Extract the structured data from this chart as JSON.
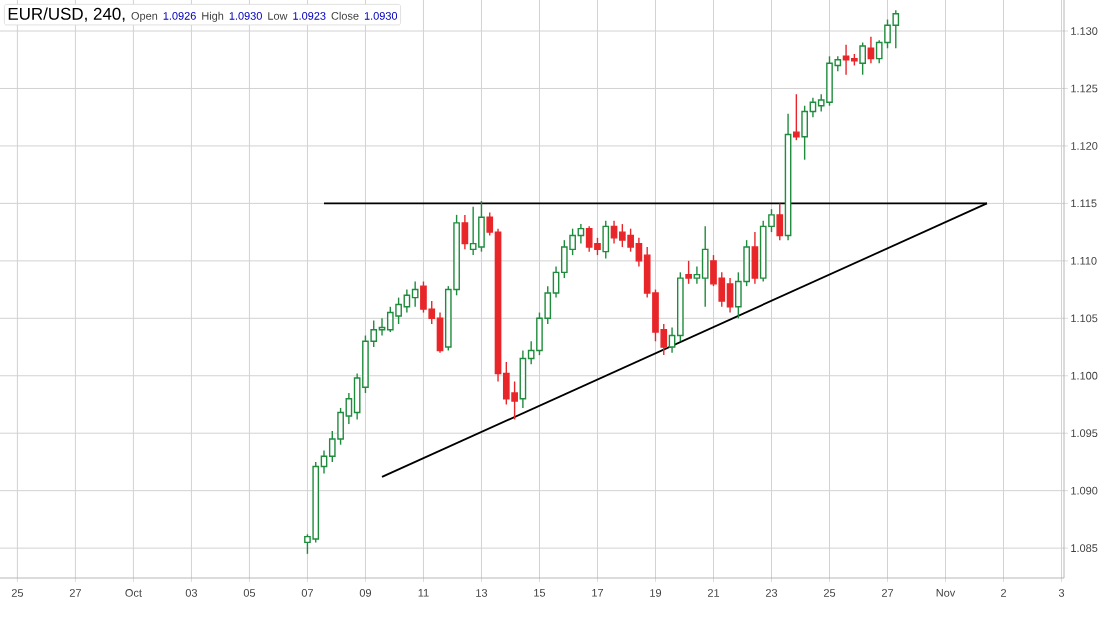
{
  "chart_data": {
    "type": "candlestick",
    "title": "EUR/USD, 240,",
    "annotations": [
      "Open",
      "1.0926",
      "High",
      "1.0930",
      "Low",
      "1.0923",
      "Close",
      "1.0930"
    ],
    "categories": [
      "25",
      null,
      null,
      null,
      null,
      null,
      null,
      "27",
      null,
      null,
      null,
      null,
      null,
      null,
      "Oct",
      null,
      null,
      null,
      null,
      null,
      null,
      "03",
      null,
      null,
      null,
      null,
      null,
      null,
      "05",
      null,
      null,
      null,
      null,
      null,
      null,
      "07",
      null,
      null,
      null,
      null,
      null,
      null,
      "09",
      null,
      null,
      null,
      null,
      null,
      null,
      "11",
      null,
      null,
      null,
      null,
      null,
      null,
      "13",
      null,
      null,
      null,
      null,
      null,
      null,
      "15",
      null,
      null,
      null,
      null,
      null,
      null,
      "17",
      null,
      null,
      null,
      null,
      null,
      null,
      "19",
      null,
      null,
      null,
      null,
      null,
      null,
      "21",
      null,
      null,
      null,
      null,
      null,
      null,
      "23",
      null,
      null,
      null,
      null,
      null,
      null,
      "25",
      null,
      null,
      null,
      null,
      null,
      null,
      "27",
      null,
      null,
      null,
      null,
      null,
      null,
      "Nov",
      null,
      null,
      null,
      null,
      null,
      null,
      "2",
      null,
      null,
      null,
      null,
      null,
      null,
      "3"
    ],
    "ohlc": [
      null,
      null,
      null,
      null,
      null,
      null,
      null,
      null,
      null,
      null,
      null,
      null,
      null,
      null,
      null,
      null,
      null,
      null,
      null,
      null,
      null,
      null,
      null,
      null,
      null,
      null,
      null,
      null,
      null,
      null,
      null,
      null,
      null,
      null,
      null,
      [
        1.0855,
        1.0862,
        1.0845,
        1.086
      ],
      [
        1.0858,
        1.0925,
        1.0855,
        1.0921
      ],
      [
        1.0921,
        1.0935,
        1.0915,
        1.093
      ],
      [
        1.093,
        1.0952,
        1.0925,
        1.0945
      ],
      [
        1.0945,
        1.0972,
        1.094,
        1.0968
      ],
      [
        1.0965,
        1.0985,
        1.0958,
        1.098
      ],
      [
        1.0968,
        1.1002,
        1.0962,
        1.0998
      ],
      [
        1.099,
        1.1035,
        1.0985,
        1.103
      ],
      [
        1.103,
        1.1048,
        1.1025,
        1.104
      ],
      [
        1.104,
        1.105,
        1.1035,
        1.1042
      ],
      [
        1.104,
        1.106,
        1.1038,
        1.1055
      ],
      [
        1.1052,
        1.1068,
        1.1045,
        1.1062
      ],
      [
        1.106,
        1.1075,
        1.1055,
        1.107
      ],
      [
        1.1068,
        1.1082,
        1.106,
        1.1075
      ],
      [
        1.1078,
        1.1082,
        1.1055,
        1.1058
      ],
      [
        1.1058,
        1.1065,
        1.1045,
        1.105
      ],
      [
        1.105,
        1.1055,
        1.102,
        1.1022
      ],
      [
        1.1025,
        1.1078,
        1.1022,
        1.1075
      ],
      [
        1.1075,
        1.114,
        1.107,
        1.1133
      ],
      [
        1.1133,
        1.114,
        1.111,
        1.1115
      ],
      [
        1.111,
        1.1147,
        1.1105,
        1.1115
      ],
      [
        1.1112,
        1.1152,
        1.1108,
        1.1138
      ],
      [
        1.1138,
        1.1142,
        1.1122,
        1.1125
      ],
      [
        1.1125,
        1.1128,
        1.0995,
        1.1002
      ],
      [
        1.1002,
        1.1012,
        1.0975,
        1.098
      ],
      [
        1.0985,
        1.0995,
        1.0962,
        1.0978
      ],
      [
        1.098,
        1.1022,
        1.0972,
        1.1015
      ],
      [
        1.1015,
        1.103,
        1.101,
        1.1022
      ],
      [
        1.1022,
        1.1055,
        1.1018,
        1.105
      ],
      [
        1.105,
        1.1078,
        1.1045,
        1.1072
      ],
      [
        1.1072,
        1.1095,
        1.1068,
        1.109
      ],
      [
        1.109,
        1.1118,
        1.1085,
        1.1112
      ],
      [
        1.111,
        1.1128,
        1.1105,
        1.1122
      ],
      [
        1.1122,
        1.1132,
        1.1115,
        1.1128
      ],
      [
        1.1128,
        1.113,
        1.1108,
        1.1112
      ],
      [
        1.1115,
        1.112,
        1.1105,
        1.111
      ],
      [
        1.1108,
        1.1135,
        1.1102,
        1.113
      ],
      [
        1.113,
        1.1135,
        1.1115,
        1.112
      ],
      [
        1.1125,
        1.1132,
        1.1112,
        1.1118
      ],
      [
        1.1122,
        1.1128,
        1.1108,
        1.1112
      ],
      [
        1.1115,
        1.112,
        1.1095,
        1.11
      ],
      [
        1.1105,
        1.1112,
        1.1068,
        1.1072
      ],
      [
        1.1072,
        1.1075,
        1.103,
        1.1038
      ],
      [
        1.104,
        1.1045,
        1.1018,
        1.1025
      ],
      [
        1.1025,
        1.1042,
        1.102,
        1.1035
      ],
      [
        1.1035,
        1.109,
        1.103,
        1.1085
      ],
      [
        1.1088,
        1.11,
        1.108,
        1.1085
      ],
      [
        1.1085,
        1.1095,
        1.108,
        1.1088
      ],
      [
        1.1085,
        1.113,
        1.106,
        1.111
      ],
      [
        1.11,
        1.1105,
        1.1078,
        1.108
      ],
      [
        1.1085,
        1.109,
        1.106,
        1.1065
      ],
      [
        1.108,
        1.1085,
        1.1055,
        1.106
      ],
      [
        1.106,
        1.109,
        1.105,
        1.1082
      ],
      [
        1.1082,
        1.1118,
        1.1078,
        1.1112
      ],
      [
        1.1112,
        1.1125,
        1.108,
        1.1085
      ],
      [
        1.1085,
        1.1135,
        1.1082,
        1.113
      ],
      [
        1.113,
        1.1145,
        1.1125,
        1.114
      ],
      [
        1.114,
        1.115,
        1.1118,
        1.1122
      ],
      [
        1.1122,
        1.1228,
        1.1118,
        1.121
      ],
      [
        1.1212,
        1.1245,
        1.1205,
        1.1208
      ],
      [
        1.1208,
        1.1235,
        1.1188,
        1.123
      ],
      [
        1.123,
        1.1242,
        1.1225,
        1.1238
      ],
      [
        1.1235,
        1.1245,
        1.123,
        1.124
      ],
      [
        1.1238,
        1.1278,
        1.1235,
        1.1272
      ],
      [
        1.127,
        1.1278,
        1.1265,
        1.1275
      ],
      [
        1.1278,
        1.1288,
        1.1262,
        1.1275
      ],
      [
        1.1276,
        1.128,
        1.127,
        1.1274
      ],
      [
        1.1272,
        1.129,
        1.1262,
        1.1287
      ],
      [
        1.1285,
        1.1295,
        1.1272,
        1.1276
      ],
      [
        1.1276,
        1.1292,
        1.1272,
        1.129
      ],
      [
        1.129,
        1.131,
        1.1285,
        1.1305
      ],
      [
        1.1305,
        1.1318,
        1.1285,
        1.1315
      ],
      null,
      null,
      null,
      null,
      null,
      null,
      null,
      null,
      null,
      null,
      null,
      null,
      null,
      null,
      null,
      null,
      null,
      null,
      null,
      null
    ],
    "colors": [
      null,
      null,
      null,
      null,
      null,
      null,
      null,
      null,
      null,
      null,
      null,
      null,
      null,
      null,
      null,
      null,
      null,
      null,
      null,
      null,
      null,
      null,
      null,
      null,
      null,
      null,
      null,
      null,
      null,
      null,
      null,
      null,
      null,
      null,
      null,
      "#1e8c3c",
      "#1e8c3c",
      "#1e8c3c",
      "#1e8c3c",
      "#1e8c3c",
      "#1e8c3c",
      "#1e8c3c",
      "#1e8c3c",
      "#1e8c3c",
      "#1e8c3c",
      "#1e8c3c",
      "#1e8c3c",
      "#1e8c3c",
      "#1e8c3c",
      "#e8262a",
      "#e8262a",
      "#e8262a",
      "#1e8c3c",
      "#1e8c3c",
      "#e8262a",
      "#1e8c3c",
      "#1e8c3c",
      "#e8262a",
      "#e8262a",
      "#e8262a",
      "#e8262a",
      "#1e8c3c",
      "#1e8c3c",
      "#1e8c3c",
      "#1e8c3c",
      "#1e8c3c",
      "#1e8c3c",
      "#1e8c3c",
      "#1e8c3c",
      "#e8262a",
      "#e8262a",
      "#1e8c3c",
      "#e8262a",
      "#e8262a",
      "#e8262a",
      "#e8262a",
      "#e8262a",
      "#e8262a",
      "#e8262a",
      "#1e8c3c",
      "#1e8c3c",
      "#e8262a",
      "#1e8c3c",
      "#1e8c3c",
      "#e8262a",
      "#e8262a",
      "#e8262a",
      "#1e8c3c",
      "#1e8c3c",
      "#e8262a",
      "#1e8c3c",
      "#1e8c3c",
      "#e8262a",
      "#1e8c3c",
      "#e8262a",
      "#1e8c3c",
      "#1e8c3c",
      "#1e8c3c",
      "#1e8c3c",
      "#1e8c3c",
      "#e8262a",
      "#e8262a",
      "#1e8c3c",
      "#e8262a",
      "#1e8c3c",
      "#1e8c3c",
      "#1e8c3c",
      null,
      null,
      null,
      null,
      null,
      null,
      null,
      null,
      null,
      null,
      null,
      null,
      null,
      null,
      null,
      null,
      null,
      null,
      null,
      null
    ],
    "series": [
      {
        "type": "line",
        "color": "#000000",
        "values": [
          null,
          null,
          null,
          null,
          null,
          null,
          null,
          null,
          null,
          null,
          null,
          null,
          null,
          null,
          null,
          null,
          null,
          null,
          null,
          null,
          null,
          null,
          null,
          null,
          null,
          null,
          null,
          null,
          null,
          null,
          null,
          null,
          null,
          null,
          null,
          null,
          null,
          1.115,
          null,
          null,
          null,
          null,
          null,
          null,
          null,
          null,
          null,
          null,
          null,
          null,
          null,
          null,
          null,
          null,
          null,
          null,
          null,
          null,
          null,
          null,
          null,
          null,
          null,
          null,
          null,
          null,
          null,
          null,
          null,
          null,
          null,
          null,
          null,
          null,
          null,
          null,
          null,
          null,
          null,
          null,
          null,
          null,
          null,
          null,
          null,
          null,
          null,
          null,
          null,
          null,
          null,
          null,
          null,
          null,
          null,
          null,
          null,
          null,
          null,
          null,
          null,
          null,
          null,
          null,
          null,
          null,
          null,
          null,
          null,
          null,
          null,
          null,
          null,
          null,
          null,
          null,
          null,
          1.115,
          null,
          null,
          null,
          null,
          null,
          null,
          null,
          null,
          null
        ]
      },
      {
        "type": "line",
        "color": "#000000",
        "values": [
          null,
          null,
          null,
          null,
          null,
          null,
          null,
          null,
          null,
          null,
          null,
          null,
          null,
          null,
          null,
          null,
          null,
          null,
          null,
          null,
          null,
          null,
          null,
          null,
          null,
          null,
          null,
          null,
          null,
          null,
          null,
          null,
          null,
          null,
          null,
          null,
          null,
          null,
          null,
          null,
          null,
          null,
          null,
          null,
          1.0912,
          null,
          null,
          null,
          null,
          null,
          null,
          null,
          null,
          null,
          null,
          null,
          null,
          null,
          null,
          null,
          null,
          null,
          null,
          null,
          null,
          null,
          null,
          null,
          null,
          null,
          null,
          null,
          null,
          null,
          null,
          null,
          null,
          null,
          null,
          null,
          null,
          null,
          null,
          null,
          null,
          null,
          null,
          null,
          null,
          null,
          null,
          null,
          null,
          null,
          null,
          null,
          null,
          null,
          null,
          null,
          null,
          null,
          null,
          null,
          null,
          null,
          null,
          null,
          null,
          null,
          null,
          null,
          null,
          null,
          null,
          null,
          null,
          1.115,
          null,
          null,
          null,
          null,
          null,
          null,
          null,
          null,
          null
        ]
      }
    ],
    "ylim": [
      1.0824,
      1.1327
    ],
    "yticks": [
      {
        "value": 1.085,
        "label": "1.085"
      },
      {
        "value": 1.09,
        "label": "1.090"
      },
      {
        "value": 1.095,
        "label": "1.095"
      },
      {
        "value": 1.1,
        "label": "1.100"
      },
      {
        "value": 1.105,
        "label": "1.105"
      },
      {
        "value": 1.11,
        "label": "1.110"
      },
      {
        "value": 1.115,
        "label": "1.115"
      },
      {
        "value": 1.12,
        "label": "1.120"
      },
      {
        "value": 1.125,
        "label": "1.125"
      },
      {
        "value": 1.13,
        "label": "1.130"
      }
    ],
    "grid": true
  }
}
